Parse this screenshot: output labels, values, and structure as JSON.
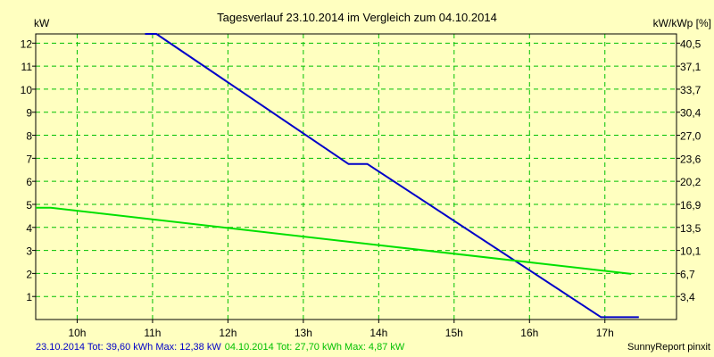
{
  "chart_data": {
    "type": "line",
    "title": "Tagesverlauf 23.10.2014 im Vergleich zum 04.10.2014",
    "ylabel_left": "kW",
    "ylabel_right": "kW/kWp [%]",
    "xlim": [
      9.45,
      17.95
    ],
    "ylim": [
      0,
      12.4
    ],
    "x_ticks": [
      10,
      11,
      12,
      13,
      14,
      15,
      16,
      17
    ],
    "x_tick_labels": [
      "10h",
      "11h",
      "12h",
      "13h",
      "14h",
      "15h",
      "16h",
      "17h"
    ],
    "y_ticks_left": [
      1,
      2,
      3,
      4,
      5,
      6,
      7,
      8,
      9,
      10,
      11,
      12
    ],
    "y_tick_labels_left": [
      "1",
      "2",
      "3",
      "4",
      "5",
      "6",
      "7",
      "8",
      "9",
      "10",
      "11",
      "12"
    ],
    "y_ticks_right": [
      1.0,
      2.0,
      3.0,
      4.0,
      5.0,
      6.0,
      7.0,
      8.0,
      9.0,
      10.0,
      11.0,
      12.0
    ],
    "y_tick_labels_right": [
      "3,4",
      "6,7",
      "10,1",
      "13,5",
      "16,9",
      "20,2",
      "23,6",
      "27,0",
      "30,4",
      "33,7",
      "37,1",
      "40,5"
    ],
    "grid": true,
    "series": [
      {
        "color": "#0000c8",
        "points": [
          [
            10.9,
            12.4
          ],
          [
            11.05,
            12.4
          ],
          [
            13.6,
            6.75
          ],
          [
            13.85,
            6.75
          ],
          [
            16.95,
            0.1
          ],
          [
            17.45,
            0.1
          ]
        ]
      },
      {
        "color": "#00e000",
        "points": [
          [
            9.45,
            4.85
          ],
          [
            9.65,
            4.85
          ],
          [
            17.35,
            1.98
          ]
        ]
      }
    ]
  },
  "footer": {
    "left_blue": "23.10.2014 Tot: 39,60 kWh Max: 12,38 kW",
    "left_green": "04.10.2014 Tot: 27,70 kWh Max: 4,87 kW",
    "right": "SunnyReport pinxit"
  },
  "colors": {
    "background": "#ffffc0",
    "grid": "#00c000",
    "axis": "#000000",
    "series_blue": "#0000c8",
    "series_green": "#00e000",
    "footer_blue": "#0000c8",
    "footer_green": "#00c000"
  }
}
